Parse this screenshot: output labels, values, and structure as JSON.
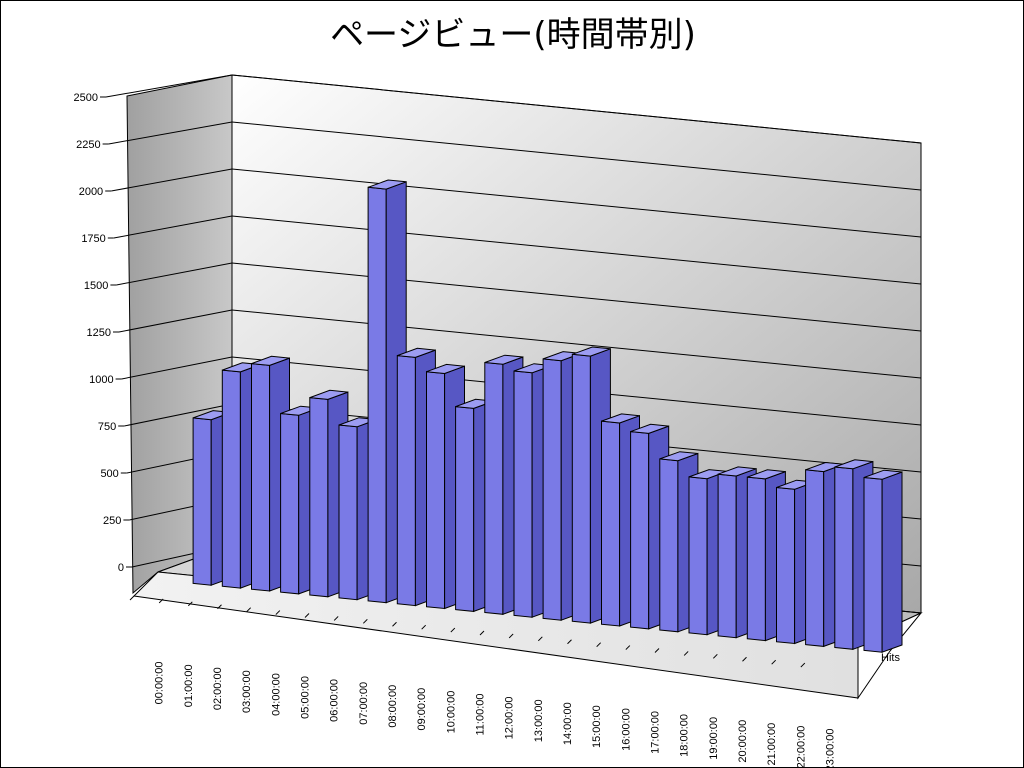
{
  "chart_data": {
    "type": "bar",
    "title": "ページビュー(時間帯別)",
    "categories": [
      "00:00:00",
      "01:00:00",
      "02:00:00",
      "03:00:00",
      "04:00:00",
      "05:00:00",
      "06:00:00",
      "07:00:00",
      "08:00:00",
      "09:00:00",
      "10:00:00",
      "11:00:00",
      "12:00:00",
      "13:00:00",
      "14:00:00",
      "15:00:00",
      "16:00:00",
      "17:00:00",
      "18:00:00",
      "19:00:00",
      "20:00:00",
      "21:00:00",
      "22:00:00",
      "23:00:00"
    ],
    "series": [
      {
        "name": "Hits",
        "values": [
          880,
          1150,
          1200,
          950,
          1050,
          920,
          2200,
          1320,
          1250,
          1080,
          1330,
          1300,
          1380,
          1420,
          1080,
          1040,
          910,
          830,
          860,
          860,
          820,
          930,
          960,
          920
        ]
      }
    ],
    "ylim": [
      0,
      2500
    ],
    "yticks": [
      "0",
      "250",
      "500",
      "750",
      "1000",
      "1250",
      "1500",
      "1750",
      "2000",
      "2250",
      "2500"
    ],
    "grid": true,
    "bar_color": "#6B6BDE"
  }
}
